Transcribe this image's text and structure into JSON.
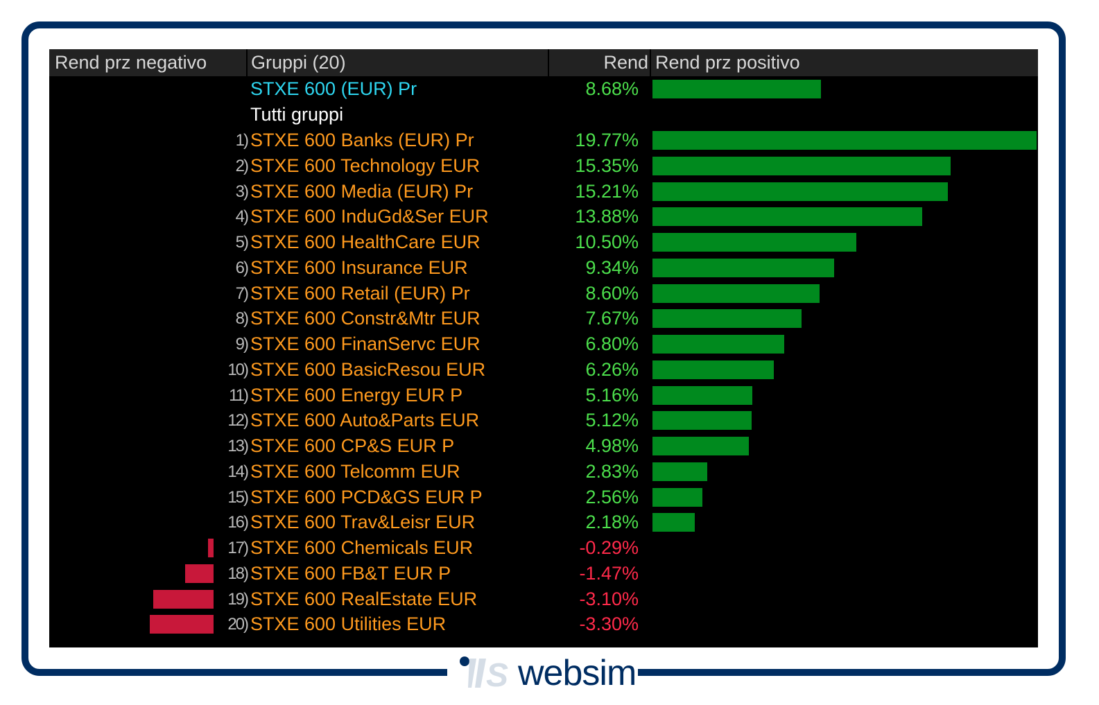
{
  "header": {
    "neg_label": "Rend prz negativo",
    "group_label": "Gruppi (20)",
    "rend_label": "Rend",
    "pos_label": "Rend prz positivo"
  },
  "benchmark": {
    "name": "STXE 600 (EUR) Pr",
    "value": 8.68,
    "label": "8.68%"
  },
  "all_groups_label": "Tutti gruppi",
  "colors": {
    "positive_bar": "#008a1e",
    "negative_bar": "#c8183a",
    "positive_text": "#4cdf4c",
    "negative_text": "#ff2a4a",
    "name_text": "#ff9a1e",
    "benchmark_text": "#2ed6f0",
    "frame": "#002d62"
  },
  "logo": {
    "text": "websim"
  },
  "chart_data": {
    "type": "bar",
    "title": "Gruppi (20)",
    "xlabel": "Rend",
    "orientation": "horizontal",
    "categories": [
      "STXE 600 Banks (EUR) Pr",
      "STXE 600 Technology EUR",
      "STXE 600 Media (EUR) Pr",
      "STXE 600 InduGd&Ser EUR",
      "STXE 600 HealthCare EUR",
      "STXE 600 Insurance EUR",
      "STXE 600 Retail (EUR) Pr",
      "STXE 600 Constr&Mtr EUR",
      "STXE 600 FinanServc EUR",
      "STXE 600 BasicResou EUR",
      "STXE 600 Energy EUR P",
      "STXE 600 Auto&Parts EUR",
      "STXE 600 CP&S EUR P",
      "STXE 600 Telcomm EUR",
      "STXE 600 PCD&GS EUR P",
      "STXE 600 Trav&Leisr EUR",
      "STXE 600 Chemicals EUR",
      "STXE 600 FB&T EUR P",
      "STXE 600 RealEstate EUR",
      "STXE 600 Utilities EUR"
    ],
    "index_labels": [
      "1)",
      "2)",
      "3)",
      "4)",
      "5)",
      "6)",
      "7)",
      "8)",
      "9)",
      "10)",
      "11)",
      "12)",
      "13)",
      "14)",
      "15)",
      "16)",
      "17)",
      "18)",
      "19)",
      "20)"
    ],
    "values": [
      19.77,
      15.35,
      15.21,
      13.88,
      10.5,
      9.34,
      8.6,
      7.67,
      6.8,
      6.26,
      5.16,
      5.12,
      4.98,
      2.83,
      2.56,
      2.18,
      -0.29,
      -1.47,
      -3.1,
      -3.3
    ],
    "value_labels": [
      "19.77%",
      "15.35%",
      "15.21%",
      "13.88%",
      "10.50%",
      "9.34%",
      "8.60%",
      "7.67%",
      "6.80%",
      "6.26%",
      "5.16%",
      "5.12%",
      "4.98%",
      "2.83%",
      "2.56%",
      "2.18%",
      "-0.29%",
      "-1.47%",
      "-3.10%",
      "-3.30%"
    ]
  }
}
